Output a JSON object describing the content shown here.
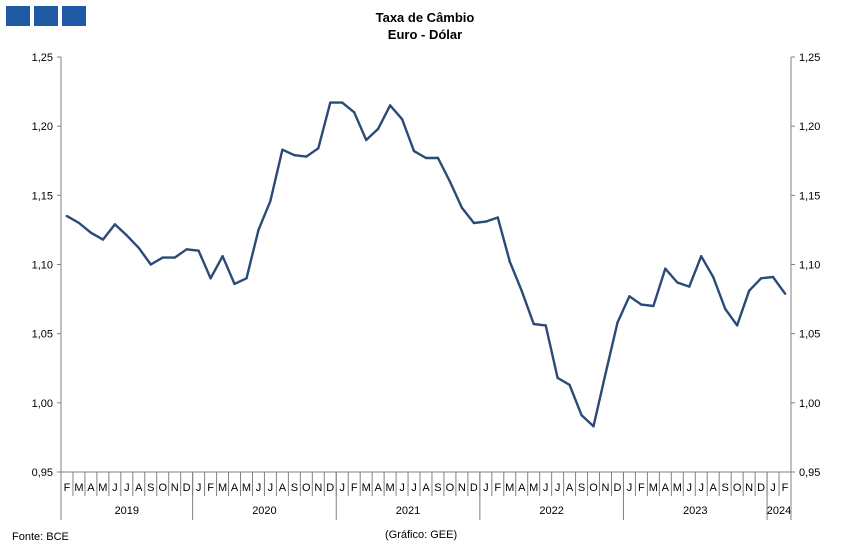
{
  "header": {
    "title": "Taxa de Câmbio",
    "subtitle": "Euro - Dólar"
  },
  "footer": {
    "source": "Fonte: BCE",
    "credit": "(Gráfico: GEE)"
  },
  "colors": {
    "line": "#2b4a77",
    "logo": "#1f5aa6",
    "axis": "#808080"
  },
  "chart_data": {
    "type": "line",
    "title": "Taxa de Câmbio",
    "subtitle": "Euro - Dólar",
    "ylim": [
      0.95,
      1.25
    ],
    "y_ticks": [
      "0,95",
      "1,00",
      "1,05",
      "1,10",
      "1,15",
      "1,20",
      "1,25"
    ],
    "y_tick_values": [
      0.95,
      1.0,
      1.05,
      1.1,
      1.15,
      1.2,
      1.25
    ],
    "month_labels": [
      "F",
      "M",
      "A",
      "M",
      "J",
      "J",
      "A",
      "S",
      "O",
      "N",
      "D",
      "J",
      "F",
      "M",
      "A",
      "M",
      "J",
      "J",
      "A",
      "S",
      "O",
      "N",
      "D",
      "J",
      "F",
      "M",
      "A",
      "M",
      "J",
      "J",
      "A",
      "S",
      "O",
      "N",
      "D",
      "J",
      "F",
      "M",
      "A",
      "M",
      "J",
      "J",
      "A",
      "S",
      "O",
      "N",
      "D",
      "J",
      "F",
      "M",
      "A",
      "M",
      "J",
      "J",
      "A",
      "S",
      "O",
      "N",
      "D",
      "J",
      "F"
    ],
    "years": [
      {
        "label": "2019",
        "start": 0,
        "count": 11
      },
      {
        "label": "2020",
        "start": 11,
        "count": 12
      },
      {
        "label": "2021",
        "start": 23,
        "count": 12
      },
      {
        "label": "2022",
        "start": 35,
        "count": 12
      },
      {
        "label": "2023",
        "start": 47,
        "count": 12
      },
      {
        "label": "2024",
        "start": 59,
        "count": 2
      }
    ],
    "series": [
      {
        "values": [
          1.135,
          1.13,
          1.123,
          1.118,
          1.129,
          1.121,
          1.112,
          1.1,
          1.105,
          1.105,
          1.111,
          1.11,
          1.09,
          1.106,
          1.086,
          1.09,
          1.125,
          1.146,
          1.183,
          1.179,
          1.178,
          1.184,
          1.217,
          1.217,
          1.21,
          1.19,
          1.198,
          1.215,
          1.205,
          1.182,
          1.177,
          1.177,
          1.16,
          1.141,
          1.13,
          1.131,
          1.134,
          1.102,
          1.081,
          1.057,
          1.056,
          1.018,
          1.013,
          0.991,
          0.983,
          1.021,
          1.058,
          1.077,
          1.071,
          1.07,
          1.097,
          1.087,
          1.084,
          1.106,
          1.091,
          1.068,
          1.056,
          1.081,
          1.09,
          1.091,
          1.079
        ]
      }
    ],
    "grid": false,
    "legend": "none"
  }
}
